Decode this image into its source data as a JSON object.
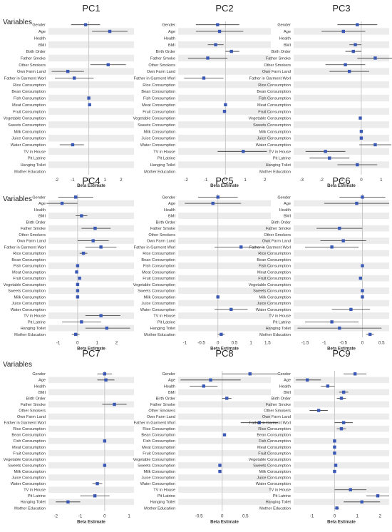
{
  "figure": {
    "row_label": "Variables",
    "x_axis_label": "Beta Estimate"
  },
  "colors": {
    "point": "#3a59b4",
    "errorbar": "#333333",
    "stripe": "#ececec",
    "zero_line": "#c9c9c9"
  },
  "chart_data": [
    {
      "title": "PC1",
      "type": "forest",
      "xlabel": "Beta Estimate",
      "xlim": [
        -2.5,
        2.8
      ],
      "xticks": [
        -2,
        -1,
        0,
        1,
        2
      ],
      "variables": [
        "Gender",
        "Age",
        "Health",
        "BMI",
        "Birth Order",
        "Father Smoke",
        "Other Smokers",
        "Own Farm Land",
        "Father in Garment Worl",
        "Rice Consumption",
        "Bean Consumption",
        "Fish Consumption",
        "Meat Consumption",
        "Fruit Consumption",
        "Vegetable Consumption",
        "Sweets Consumption",
        "Milk Consumption",
        "Juice Consumption",
        "Water Consumption",
        "TV in House",
        "Pit Latrine",
        "Hanging Toilet",
        "Mother Education"
      ],
      "estimates": [
        -0.2,
        1.3,
        null,
        null,
        null,
        null,
        1.2,
        -1.3,
        -0.9,
        null,
        null,
        0.0,
        0.05,
        null,
        null,
        null,
        null,
        null,
        -1.0,
        null,
        null,
        null,
        null
      ],
      "lower": [
        -1.1,
        0.2,
        null,
        null,
        null,
        null,
        0.1,
        -2.3,
        -2.1,
        null,
        null,
        -0.02,
        0.0,
        null,
        null,
        null,
        null,
        null,
        -1.8,
        null,
        null,
        null,
        null
      ],
      "upper": [
        0.7,
        2.4,
        null,
        null,
        null,
        null,
        2.3,
        -0.3,
        0.3,
        null,
        null,
        0.02,
        0.1,
        null,
        null,
        null,
        null,
        null,
        -0.3,
        null,
        null,
        null,
        null
      ]
    },
    {
      "title": "PC2",
      "type": "forest",
      "xlabel": "Beta Estimate",
      "xlim": [
        -2.4,
        2.3
      ],
      "xticks": [
        -2,
        -1,
        0,
        1,
        2
      ],
      "variables": [
        "Gender",
        "Age",
        "Health",
        "BMI",
        "Birth Order",
        "Father Smoke",
        "Other Smokers",
        "Own Farm Land",
        "Father in Garment Worl",
        "Rice Consumption",
        "Bean Consumption",
        "Fish Consumption",
        "Meat Consumption",
        "Fruit Consumption",
        "Vegetable Consumption",
        "Sweets Consumption",
        "Milk Consumption",
        "Juice Consumption",
        "Water Consumption",
        "TV in House",
        "Pit Latrine",
        "Hanging Toilet",
        "Mother Education"
      ],
      "estimates": [
        -0.4,
        -0.3,
        null,
        -0.5,
        0.3,
        -0.9,
        null,
        null,
        -1.1,
        null,
        null,
        null,
        0.0,
        -0.05,
        null,
        null,
        null,
        null,
        null,
        0.9,
        null,
        null,
        null
      ],
      "lower": [
        -1.5,
        -1.5,
        null,
        -0.9,
        0.0,
        -1.9,
        null,
        null,
        -2.1,
        null,
        null,
        null,
        -0.05,
        -0.1,
        null,
        null,
        null,
        null,
        null,
        -0.4,
        null,
        null,
        null
      ],
      "upper": [
        0.7,
        0.9,
        null,
        -0.1,
        0.7,
        0.1,
        null,
        null,
        -0.1,
        null,
        null,
        null,
        0.05,
        0.0,
        null,
        null,
        null,
        null,
        null,
        2.1,
        null,
        null,
        null
      ]
    },
    {
      "title": "PC3",
      "type": "forest",
      "xlabel": "Beta Estimate",
      "xlim": [
        -3.4,
        1.4
      ],
      "xticks": [
        -3,
        -2,
        -1,
        0,
        1
      ],
      "variables": [
        "Gender",
        "Age",
        "Health",
        "BMI",
        "Birth Order",
        "Father Smoke",
        "Other Smokers",
        "Own Farm Land",
        "Father in Garment Worl",
        "Rice Consumption",
        "Bean Consumption",
        "Fish Consumption",
        "Meat Consumption",
        "Fruit Consumption",
        "Vegetable Consumption",
        "Sweets Consumption",
        "Milk Consumption",
        "Juice Consumption",
        "Water Consumption",
        "TV in House",
        "Pit Latrine",
        "Hanging Toilet",
        "Mother Education"
      ],
      "estimates": [
        -0.2,
        -0.9,
        null,
        -0.3,
        -0.4,
        0.7,
        -0.8,
        -0.6,
        null,
        null,
        null,
        null,
        null,
        null,
        -0.05,
        null,
        0.0,
        0.0,
        0.7,
        -1.8,
        -1.6,
        -0.2,
        null
      ],
      "lower": [
        -1.2,
        -2.0,
        null,
        -0.6,
        -0.8,
        -0.2,
        -1.8,
        -1.6,
        null,
        null,
        null,
        null,
        null,
        null,
        -0.1,
        null,
        -0.05,
        -0.05,
        -0.1,
        -2.8,
        -2.6,
        -1.2,
        null
      ],
      "upper": [
        0.8,
        0.2,
        null,
        0.0,
        0.0,
        1.6,
        0.2,
        0.4,
        null,
        null,
        null,
        null,
        null,
        null,
        0.0,
        null,
        0.05,
        0.05,
        1.5,
        -0.8,
        -0.6,
        0.8,
        null
      ]
    },
    {
      "title": "PC4",
      "type": "forest",
      "xlabel": "Beta Estimate",
      "xlim": [
        -1.5,
        2.9
      ],
      "xticks": [
        -1,
        0,
        1,
        2
      ],
      "variables": [
        "Gender",
        "Age",
        "Health",
        "BMI",
        "Birth Order",
        "Father Smoke",
        "Other Smokers",
        "Own Farm Land",
        "Father in Garment Worl",
        "Rice Consumption",
        "Bean Consumption",
        "Fish Consumption",
        "Meat Consumption",
        "Fruit Consumption",
        "Vegetable Consumption",
        "Sweets Consumption",
        "Milk Consumption",
        "Juice Consumption",
        "Water Consumption",
        "TV in House",
        "Pit Latrine",
        "Hanging Toilet",
        "Mother Education"
      ],
      "estimates": [
        -0.1,
        -0.8,
        null,
        0.2,
        null,
        0.9,
        null,
        0.8,
        1.2,
        0.3,
        null,
        0.0,
        -0.05,
        0.1,
        0.0,
        0.0,
        0.0,
        null,
        null,
        1.2,
        0.2,
        1.5,
        -0.1
      ],
      "lower": [
        -1.0,
        -1.6,
        null,
        -0.1,
        null,
        0.2,
        null,
        0.0,
        0.4,
        0.1,
        null,
        -0.05,
        -0.1,
        0.05,
        -0.05,
        -0.05,
        -0.05,
        null,
        null,
        0.4,
        -0.8,
        0.4,
        -0.3
      ],
      "upper": [
        0.8,
        0.0,
        null,
        0.5,
        null,
        1.7,
        null,
        1.6,
        2.0,
        0.5,
        null,
        0.05,
        0.0,
        0.15,
        0.05,
        0.05,
        0.05,
        null,
        null,
        2.2,
        1.2,
        2.7,
        0.1
      ]
    },
    {
      "title": "PC5",
      "type": "forest",
      "xlabel": "Beta Estimate",
      "xlim": [
        -1.2,
        1.6
      ],
      "xticks": [
        -1,
        -0.5,
        0,
        0.5,
        1,
        1.5
      ],
      "variables": [
        "Gender",
        "Age",
        "Health",
        "BMI",
        "Birth Order",
        "Father Smoke",
        "Other Smokers",
        "Own Farm Land",
        "Father in Garment Worl",
        "Rice Consumption",
        "Bean Consumption",
        "Fish Consumption",
        "Meat Consumption",
        "Fruit Consumption",
        "Vegetable Consumption",
        "Sweets Consumption",
        "Milk Consumption",
        "Juice Consumption",
        "Water Consumption",
        "TV in House",
        "Pit Latrine",
        "Hanging Toilet",
        "Mother Education"
      ],
      "estimates": [
        0.0,
        -0.15,
        null,
        null,
        null,
        null,
        null,
        null,
        0.7,
        null,
        null,
        null,
        null,
        null,
        null,
        null,
        0.0,
        null,
        0.4,
        null,
        null,
        null,
        0.1
      ],
      "lower": [
        -0.6,
        -1.0,
        null,
        null,
        null,
        null,
        null,
        null,
        -0.1,
        null,
        null,
        null,
        null,
        null,
        null,
        null,
        -0.02,
        null,
        -0.1,
        null,
        null,
        null,
        0.0
      ],
      "upper": [
        0.6,
        0.7,
        null,
        null,
        null,
        null,
        null,
        null,
        1.4,
        null,
        null,
        null,
        null,
        null,
        null,
        null,
        0.02,
        null,
        0.9,
        null,
        null,
        null,
        0.2
      ]
    },
    {
      "title": "PC6",
      "type": "forest",
      "xlabel": "Beta Estimate",
      "xlim": [
        -1.8,
        0.7
      ],
      "xticks": [
        -1.5,
        -1,
        -0.5,
        0,
        0.5
      ],
      "variables": [
        "Gender",
        "Age",
        "Health",
        "BMI",
        "Birth Order",
        "Father Smoke",
        "Other Smokers",
        "Own Farm Land",
        "Father in Garment Worl",
        "Rice Consumption",
        "Bean Consumption",
        "Fish Consumption",
        "Meat Consumption",
        "Fruit Consumption",
        "Vegetable Consumption",
        "Sweets Consumption",
        "Milk Consumption",
        "Juice Consumption",
        "Water Consumption",
        "TV in House",
        "Pit Latrine",
        "Hanging Toilet",
        "Mother Education"
      ],
      "estimates": [
        0.0,
        -0.15,
        null,
        null,
        null,
        -0.6,
        null,
        -0.5,
        -0.8,
        null,
        null,
        0.0,
        null,
        -0.05,
        null,
        0.0,
        0.0,
        null,
        -0.3,
        null,
        -0.8,
        -0.6,
        0.2
      ],
      "lower": [
        -0.6,
        -1.0,
        null,
        null,
        null,
        -1.2,
        null,
        -1.1,
        -1.5,
        null,
        null,
        -0.02,
        null,
        -0.07,
        null,
        -0.02,
        -0.02,
        null,
        -0.8,
        null,
        -1.5,
        -1.7,
        0.1
      ],
      "upper": [
        0.6,
        0.7,
        null,
        null,
        null,
        0.0,
        null,
        0.1,
        -0.1,
        null,
        null,
        0.02,
        null,
        -0.03,
        null,
        0.02,
        0.02,
        null,
        0.2,
        null,
        -0.1,
        0.5,
        0.3
      ]
    },
    {
      "title": "PC7",
      "type": "forest",
      "xlabel": "Beta Estimate",
      "xlim": [
        -2.3,
        1.2
      ],
      "xticks": [
        -2,
        -1,
        0,
        1
      ],
      "variables": [
        "Gender",
        "Age",
        "Health",
        "BMI",
        "Birth Order",
        "Father Smoke",
        "Other Smokers",
        "Own Farm Land",
        "Father in Garment Worl",
        "Rice Consumption",
        "Bean Consumption",
        "Fish Consumption",
        "Meat Consumption",
        "Fruit Consumption",
        "Vegetable Consumption",
        "Sweets Consumption",
        "Milk Consumption",
        "Juice Consumption",
        "Water Consumption",
        "TV in House",
        "Pit Latrine",
        "Hanging Toilet",
        "Mother Education"
      ],
      "estimates": [
        0.0,
        0.05,
        null,
        null,
        null,
        0.4,
        null,
        null,
        null,
        null,
        null,
        0.0,
        null,
        null,
        null,
        0.0,
        null,
        null,
        -0.3,
        null,
        -0.4,
        -1.5,
        null
      ],
      "lower": [
        -0.3,
        -0.3,
        null,
        null,
        null,
        -0.1,
        null,
        null,
        null,
        null,
        null,
        -0.02,
        null,
        null,
        null,
        -0.02,
        null,
        null,
        -0.5,
        null,
        -1.0,
        -2.0,
        null
      ],
      "upper": [
        0.3,
        0.4,
        null,
        null,
        null,
        0.9,
        null,
        null,
        null,
        null,
        null,
        0.02,
        null,
        null,
        null,
        0.02,
        null,
        null,
        -0.1,
        null,
        0.2,
        -1.0,
        null
      ]
    },
    {
      "title": "PC8",
      "type": "forest",
      "xlabel": "Beta Estimate",
      "xlim": [
        -0.95,
        1.05
      ],
      "xticks": [
        -0.5,
        0,
        0.5
      ],
      "variables": [
        "Gender",
        "Age",
        "Health",
        "BMI",
        "Birth Order",
        "Father Smoke",
        "Other Smokers",
        "Own Farm Land",
        "Father in Garment Worl",
        "Rice Consumption",
        "Bean Consumption",
        "Fish Consumption",
        "Meat Consumption",
        "Fruit Consumption",
        "Vegetable Consumption",
        "Sweets Consumption",
        "Milk Consumption",
        "Juice Consumption",
        "Water Consumption",
        "TV in House",
        "Pit Latrine",
        "Hanging Toilet",
        "Mother Education"
      ],
      "estimates": [
        0.6,
        -0.25,
        -0.4,
        null,
        0.1,
        null,
        null,
        null,
        0.8,
        null,
        0.05,
        null,
        null,
        null,
        null,
        -0.05,
        -0.05,
        null,
        null,
        null,
        null,
        null,
        null
      ],
      "lower": [
        0.0,
        -0.9,
        -0.7,
        null,
        0.0,
        null,
        null,
        null,
        0.4,
        null,
        0.03,
        null,
        null,
        null,
        null,
        -0.07,
        -0.07,
        null,
        null,
        null,
        null,
        null,
        null
      ],
      "upper": [
        1.2,
        0.4,
        -0.1,
        null,
        0.2,
        null,
        null,
        null,
        1.2,
        null,
        0.07,
        null,
        null,
        null,
        null,
        -0.03,
        -0.03,
        null,
        null,
        null,
        null,
        null,
        null
      ]
    },
    {
      "title": "PC9",
      "type": "forest",
      "xlabel": "Beta Estimate",
      "xlim": [
        -1.8,
        2.4
      ],
      "xticks": [
        -1,
        0,
        1,
        2
      ],
      "variables": [
        "Gender",
        "Age",
        "Health",
        "BMI",
        "Birth Order",
        "Father Smoke",
        "Other Smokers",
        "Own Farm Land",
        "Father in Garment Worl",
        "Rice Consumption",
        "Bean Consumption",
        "Fish Consumption",
        "Meat Consumption",
        "Fruit Consumption",
        "Vegetable Consumption",
        "Sweets Consumption",
        "Milk Consumption",
        "Juice Consumption",
        "Water Consumption",
        "TV in House",
        "Pit Latrine",
        "Hanging Toilet",
        "Mother Education"
      ],
      "estimates": [
        0.9,
        -1.2,
        -0.3,
        0.4,
        0.3,
        null,
        -0.7,
        null,
        0.4,
        0.3,
        null,
        0.0,
        0.0,
        0.0,
        null,
        0.05,
        0.0,
        null,
        null,
        0.7,
        1.9,
        1.2,
        0.1
      ],
      "lower": [
        0.4,
        -1.7,
        -0.6,
        0.2,
        0.1,
        null,
        -1.1,
        null,
        0.0,
        0.1,
        null,
        -0.03,
        -0.03,
        -0.03,
        null,
        0.0,
        -0.03,
        null,
        null,
        0.0,
        1.4,
        0.4,
        0.0
      ],
      "upper": [
        1.4,
        -0.6,
        0.0,
        0.6,
        0.5,
        null,
        -0.3,
        null,
        0.8,
        0.5,
        null,
        0.03,
        0.03,
        0.03,
        null,
        0.1,
        0.03,
        null,
        null,
        1.4,
        2.4,
        2.0,
        0.2
      ]
    }
  ]
}
